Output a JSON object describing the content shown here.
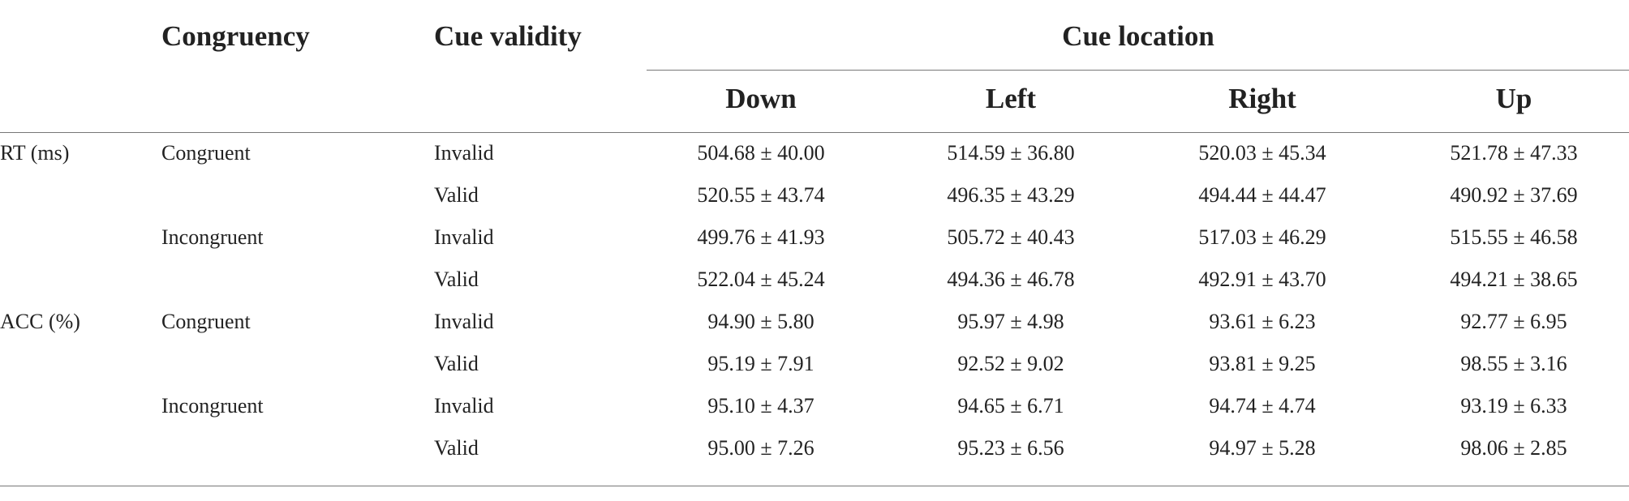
{
  "table": {
    "headers": {
      "congruency": "Congruency",
      "cue_validity": "Cue validity",
      "cue_location": "Cue location",
      "locations": [
        "Down",
        "Left",
        "Right",
        "Up"
      ]
    },
    "rows": [
      {
        "measure": "RT (ms)",
        "congruency": "Congruent",
        "validity": "Invalid",
        "values": [
          "504.68 ± 40.00",
          "514.59 ± 36.80",
          "520.03 ± 45.34",
          "521.78 ± 47.33"
        ]
      },
      {
        "measure": "",
        "congruency": "",
        "validity": "Valid",
        "values": [
          "520.55 ± 43.74",
          "496.35 ± 43.29",
          "494.44 ± 44.47",
          "490.92 ± 37.69"
        ]
      },
      {
        "measure": "",
        "congruency": "Incongruent",
        "validity": "Invalid",
        "values": [
          "499.76 ± 41.93",
          "505.72 ± 40.43",
          "517.03 ± 46.29",
          "515.55 ± 46.58"
        ]
      },
      {
        "measure": "",
        "congruency": "",
        "validity": "Valid",
        "values": [
          "522.04 ± 45.24",
          "494.36 ± 46.78",
          "492.91 ± 43.70",
          "494.21 ± 38.65"
        ]
      },
      {
        "measure": "ACC (%)",
        "congruency": "Congruent",
        "validity": "Invalid",
        "values": [
          "94.90 ± 5.80",
          "95.97 ± 4.98",
          "93.61 ± 6.23",
          "92.77 ± 6.95"
        ]
      },
      {
        "measure": "",
        "congruency": "",
        "validity": "Valid",
        "values": [
          "95.19 ± 7.91",
          "92.52 ± 9.02",
          "93.81 ± 9.25",
          "98.55 ± 3.16"
        ]
      },
      {
        "measure": "",
        "congruency": "Incongruent",
        "validity": "Invalid",
        "values": [
          "95.10 ± 4.37",
          "94.65 ± 6.71",
          "94.74 ± 4.74",
          "93.19 ± 6.33"
        ]
      },
      {
        "measure": "",
        "congruency": "",
        "validity": "Valid",
        "values": [
          "95.00 ± 7.26",
          "95.23 ± 6.56",
          "94.97 ± 5.28",
          "98.06 ± 2.85"
        ]
      }
    ]
  }
}
